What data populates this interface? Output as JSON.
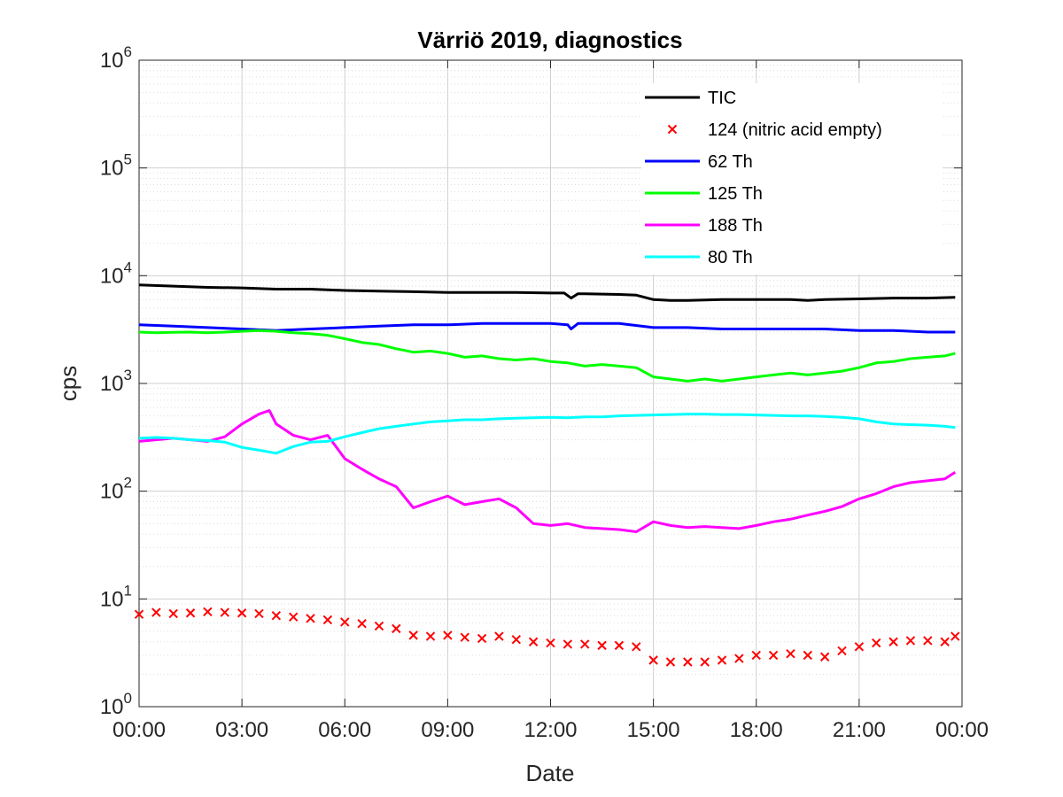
{
  "chart_data": {
    "type": "line",
    "title": "Värriö 2019, diagnostics",
    "xlabel": "Date",
    "ylabel": "cps",
    "yscale": "log",
    "ylim": [
      1,
      1000000
    ],
    "y_ticks": [
      {
        "base": "10",
        "exp": "0"
      },
      {
        "base": "10",
        "exp": "1"
      },
      {
        "base": "10",
        "exp": "2"
      },
      {
        "base": "10",
        "exp": "3"
      },
      {
        "base": "10",
        "exp": "4"
      },
      {
        "base": "10",
        "exp": "5"
      },
      {
        "base": "10",
        "exp": "6"
      }
    ],
    "x_ticks": [
      "00:00",
      "03:00",
      "06:00",
      "09:00",
      "12:00",
      "15:00",
      "18:00",
      "21:00",
      "00:00"
    ],
    "x_range_hours": [
      0,
      24
    ],
    "grid": true,
    "legend_position": "top-right",
    "series": [
      {
        "name": "TIC",
        "color": "#000000",
        "style": "line",
        "x": [
          0,
          1,
          2,
          3,
          4,
          5,
          6,
          7,
          8,
          9,
          10,
          11,
          12,
          12.4,
          12.6,
          12.8,
          13,
          14,
          14.5,
          15,
          15.5,
          16,
          17,
          18,
          19,
          19.5,
          20,
          21,
          22,
          23,
          23.8
        ],
        "y": [
          8200,
          8000,
          7800,
          7700,
          7500,
          7500,
          7300,
          7200,
          7100,
          7000,
          7000,
          7000,
          6900,
          6900,
          6200,
          6800,
          6800,
          6700,
          6600,
          6000,
          5900,
          5900,
          6000,
          6000,
          6000,
          5900,
          6000,
          6100,
          6200,
          6200,
          6300
        ]
      },
      {
        "name": "124 (nitric acid empty)",
        "color": "#ff0000",
        "style": "markers-x",
        "x": [
          0,
          0.5,
          1,
          1.5,
          2,
          2.5,
          3,
          3.5,
          4,
          4.5,
          5,
          5.5,
          6,
          6.5,
          7,
          7.5,
          8,
          8.5,
          9,
          9.5,
          10,
          10.5,
          11,
          11.5,
          12,
          12.5,
          13,
          13.5,
          14,
          14.5,
          15,
          15.5,
          16,
          16.5,
          17,
          17.5,
          18,
          18.5,
          19,
          19.5,
          20,
          20.5,
          21,
          21.5,
          22,
          22.5,
          23,
          23.5,
          23.8
        ],
        "y": [
          7.2,
          7.5,
          7.3,
          7.4,
          7.6,
          7.5,
          7.4,
          7.3,
          7.0,
          6.8,
          6.6,
          6.4,
          6.1,
          5.9,
          5.6,
          5.3,
          4.6,
          4.5,
          4.6,
          4.4,
          4.3,
          4.5,
          4.2,
          4.0,
          3.9,
          3.8,
          3.8,
          3.7,
          3.7,
          3.6,
          2.7,
          2.6,
          2.6,
          2.6,
          2.7,
          2.8,
          3.0,
          3.0,
          3.1,
          3.0,
          2.9,
          3.3,
          3.6,
          3.9,
          4.0,
          4.1,
          4.1,
          4.0,
          4.5
        ]
      },
      {
        "name": "62 Th",
        "color": "#0000ff",
        "style": "line",
        "x": [
          0,
          1,
          2,
          3,
          4,
          5,
          6,
          7,
          8,
          9,
          10,
          11,
          12,
          12.5,
          12.6,
          12.8,
          13,
          14,
          15,
          16,
          17,
          18,
          19,
          20,
          21,
          22,
          23,
          23.8
        ],
        "y": [
          3500,
          3400,
          3300,
          3200,
          3100,
          3200,
          3300,
          3400,
          3500,
          3500,
          3600,
          3600,
          3600,
          3500,
          3200,
          3600,
          3600,
          3600,
          3300,
          3300,
          3200,
          3200,
          3200,
          3200,
          3100,
          3100,
          3000,
          3000
        ]
      },
      {
        "name": "125 Th",
        "color": "#00ff00",
        "style": "line",
        "x": [
          0,
          0.5,
          1,
          1.5,
          2,
          2.5,
          3,
          3.5,
          4,
          4.5,
          5,
          5.5,
          6,
          6.5,
          7,
          7.5,
          8,
          8.5,
          9,
          9.5,
          10,
          10.5,
          11,
          11.5,
          12,
          12.5,
          13,
          13.5,
          14,
          14.5,
          15,
          15.5,
          16,
          16.5,
          17,
          17.5,
          18,
          18.5,
          19,
          19.5,
          20,
          20.5,
          21,
          21.5,
          22,
          22.5,
          23,
          23.5,
          23.8
        ],
        "y": [
          3000,
          2950,
          2980,
          3000,
          2950,
          3000,
          3050,
          3100,
          3050,
          2950,
          2900,
          2800,
          2600,
          2400,
          2300,
          2100,
          1950,
          2000,
          1900,
          1750,
          1800,
          1700,
          1650,
          1700,
          1600,
          1550,
          1450,
          1500,
          1450,
          1400,
          1150,
          1100,
          1050,
          1100,
          1050,
          1100,
          1150,
          1200,
          1250,
          1200,
          1250,
          1300,
          1400,
          1550,
          1600,
          1700,
          1750,
          1800,
          1900
        ]
      },
      {
        "name": "188 Th",
        "color": "#ff00ff",
        "style": "line",
        "x": [
          0,
          0.5,
          1,
          1.5,
          2,
          2.5,
          3,
          3.5,
          3.8,
          4,
          4.5,
          5,
          5.5,
          6,
          6.5,
          7,
          7.5,
          8,
          8.5,
          9,
          9.5,
          10,
          10.5,
          11,
          11.5,
          12,
          12.5,
          13,
          13.5,
          14,
          14.5,
          15,
          15.5,
          16,
          16.5,
          17,
          17.5,
          18,
          18.5,
          19,
          19.5,
          20,
          20.5,
          21,
          21.5,
          22,
          22.5,
          23,
          23.5,
          23.8
        ],
        "y": [
          290,
          300,
          310,
          300,
          290,
          320,
          420,
          520,
          560,
          420,
          330,
          300,
          330,
          200,
          160,
          130,
          110,
          70,
          80,
          90,
          75,
          80,
          85,
          70,
          50,
          48,
          50,
          46,
          45,
          44,
          42,
          52,
          48,
          46,
          47,
          46,
          45,
          48,
          52,
          55,
          60,
          65,
          72,
          85,
          95,
          110,
          120,
          125,
          130,
          150
        ]
      },
      {
        "name": "80 Th",
        "color": "#00ffff",
        "style": "line",
        "x": [
          0,
          0.5,
          1,
          1.5,
          2,
          2.5,
          3,
          3.5,
          4,
          4.5,
          5,
          5.5,
          6,
          6.5,
          7,
          7.5,
          8,
          8.5,
          9,
          9.5,
          10,
          10.5,
          11,
          11.5,
          12,
          12.5,
          13,
          13.5,
          14,
          14.5,
          15,
          15.5,
          16,
          16.5,
          17,
          17.5,
          18,
          18.5,
          19,
          19.5,
          20,
          20.5,
          21,
          21.5,
          22,
          22.5,
          23,
          23.5,
          23.8
        ],
        "y": [
          310,
          315,
          310,
          300,
          295,
          285,
          255,
          240,
          225,
          260,
          285,
          290,
          320,
          350,
          380,
          400,
          420,
          440,
          450,
          460,
          460,
          470,
          475,
          480,
          485,
          480,
          490,
          490,
          500,
          505,
          510,
          515,
          520,
          520,
          515,
          515,
          510,
          505,
          500,
          500,
          495,
          485,
          470,
          440,
          420,
          415,
          410,
          400,
          390
        ]
      }
    ]
  }
}
